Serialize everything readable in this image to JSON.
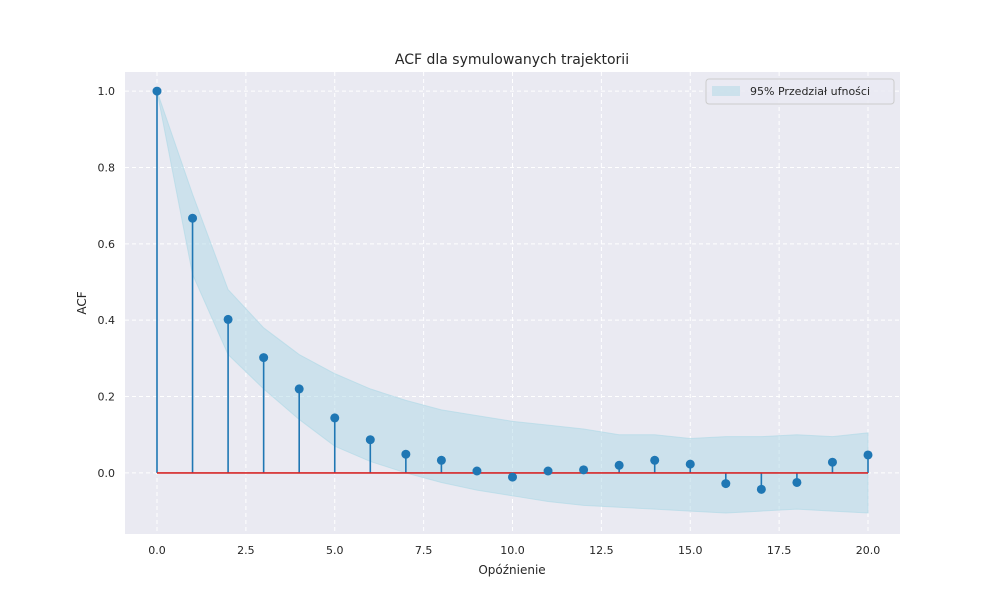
{
  "chart_data": {
    "type": "stem",
    "title": "ACF dla symulowanych trajektorii",
    "xlabel": "Opóźnienie",
    "ylabel": "ACF",
    "xlim": [
      -0.9,
      20.9
    ],
    "ylim": [
      -0.16,
      1.05
    ],
    "x_ticks": [
      0,
      2.5,
      5,
      7.5,
      10,
      12.5,
      15,
      17.5,
      20
    ],
    "x_tick_labels": [
      "0.0",
      "2.5",
      "5.0",
      "7.5",
      "10.0",
      "12.5",
      "15.0",
      "17.5",
      "20.0"
    ],
    "y_ticks": [
      0,
      0.2,
      0.4,
      0.6,
      0.8,
      1.0
    ],
    "y_tick_labels": [
      "0.0",
      "0.2",
      "0.4",
      "0.6",
      "0.8",
      "1.0"
    ],
    "grid": true,
    "legend_position": "top-right",
    "x": [
      0,
      1,
      2,
      3,
      4,
      5,
      6,
      7,
      8,
      9,
      10,
      11,
      12,
      13,
      14,
      15,
      16,
      17,
      18,
      19,
      20
    ],
    "series": [
      {
        "values": [
          1.0,
          0.667,
          0.402,
          0.302,
          0.22,
          0.144,
          0.087,
          0.049,
          0.033,
          0.005,
          -0.011,
          0.005,
          0.008,
          0.02,
          0.033,
          0.023,
          -0.028,
          -0.043,
          -0.025,
          0.028,
          0.047
        ]
      }
    ],
    "band": {
      "name": "95% Przedział ufności",
      "lower": [
        1.0,
        0.52,
        0.31,
        0.22,
        0.14,
        0.07,
        0.03,
        0.0,
        -0.025,
        -0.045,
        -0.06,
        -0.075,
        -0.085,
        -0.09,
        -0.095,
        -0.1,
        -0.105,
        -0.1,
        -0.095,
        -0.1,
        -0.105
      ],
      "upper": [
        1.0,
        0.73,
        0.48,
        0.38,
        0.31,
        0.26,
        0.22,
        0.19,
        0.165,
        0.15,
        0.135,
        0.125,
        0.115,
        0.1,
        0.1,
        0.09,
        0.095,
        0.095,
        0.1,
        0.095,
        0.105
      ]
    },
    "baseline": 0,
    "colors": {
      "stem": "#1f77b4",
      "marker": "#1f77b4",
      "baseline": "#d62728",
      "band": "#add8e6",
      "plot_background": "#eaeaf2",
      "grid": "#ffffff"
    }
  }
}
